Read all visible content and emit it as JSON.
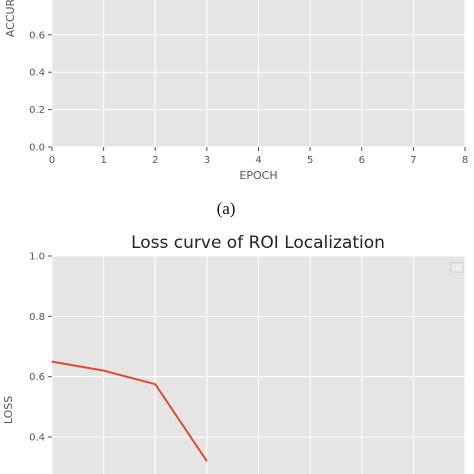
{
  "colors": {
    "panel_bg": "#e5e5e5",
    "grid": "#ffffff",
    "loss_line": "#e24a33"
  },
  "chart_data": [
    {
      "type": "line",
      "title": "",
      "xlabel": "EPOCH",
      "ylabel": "ACCUR",
      "xlim": [
        0,
        8
      ],
      "ylim": [
        0,
        1.0
      ],
      "xticks": [
        "0",
        "1",
        "2",
        "3",
        "4",
        "5",
        "6",
        "7",
        "8"
      ],
      "yticks": [
        "0.0",
        "0.2",
        "0.4",
        "0.6"
      ],
      "grid": true,
      "series": []
    },
    {
      "type": "line",
      "title": "Loss curve of ROI Localization",
      "xlabel": "",
      "ylabel": "LOSS",
      "xlim": [
        0,
        8
      ],
      "ylim": [
        0.4,
        1.0
      ],
      "yticks": [
        "0.4",
        "0.6",
        "0.8",
        "1.0"
      ],
      "grid": true,
      "legend": "top-right",
      "series": [
        {
          "x": [
            0,
            1,
            2,
            3
          ],
          "y": [
            0.65,
            0.62,
            0.575,
            0.32
          ]
        }
      ]
    }
  ],
  "caption": "(a)"
}
